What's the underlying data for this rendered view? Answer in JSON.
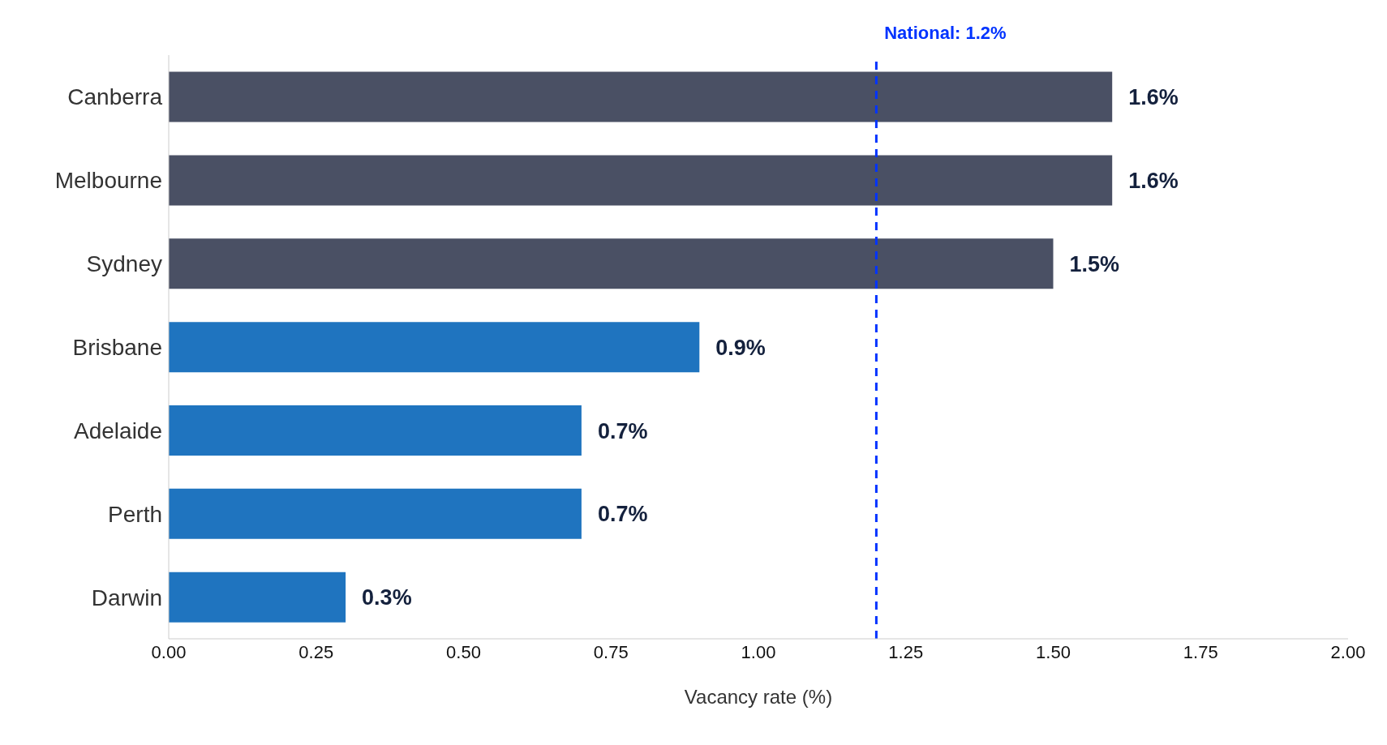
{
  "chart_data": {
    "type": "bar",
    "orientation": "horizontal",
    "categories": [
      "Canberra",
      "Melbourne",
      "Sydney",
      "Brisbane",
      "Adelaide",
      "Perth",
      "Darwin"
    ],
    "values": [
      1.6,
      1.6,
      1.5,
      0.9,
      0.7,
      0.7,
      0.3
    ],
    "colors": [
      "#4a5064",
      "#4a5064",
      "#4a5064",
      "#1f74bf",
      "#1f74bf",
      "#1f74bf",
      "#1f74bf"
    ],
    "value_labels": [
      "1.6%",
      "1.6%",
      "1.5%",
      "0.9%",
      "0.7%",
      "0.7%",
      "0.3%"
    ],
    "xlim": [
      0,
      2
    ],
    "xticks": [
      {
        "value": 0,
        "label": "0.00"
      },
      {
        "value": 0.25,
        "label": "0.25"
      },
      {
        "value": 0.5,
        "label": "0.50"
      },
      {
        "value": 0.75,
        "label": "0.75"
      },
      {
        "value": 1,
        "label": "1.00"
      },
      {
        "value": 1.25,
        "label": "1.25"
      },
      {
        "value": 1.5,
        "label": "1.50"
      },
      {
        "value": 1.75,
        "label": "1.75"
      },
      {
        "value": 2,
        "label": "2.00"
      }
    ],
    "xlabel": "Vacancy rate (%)",
    "ref_lines": [
      {
        "axis": "x",
        "value": 1.2,
        "label": "National: 1.2%",
        "color": "#0033ff",
        "line_style": "dashed"
      }
    ],
    "grid": false
  }
}
